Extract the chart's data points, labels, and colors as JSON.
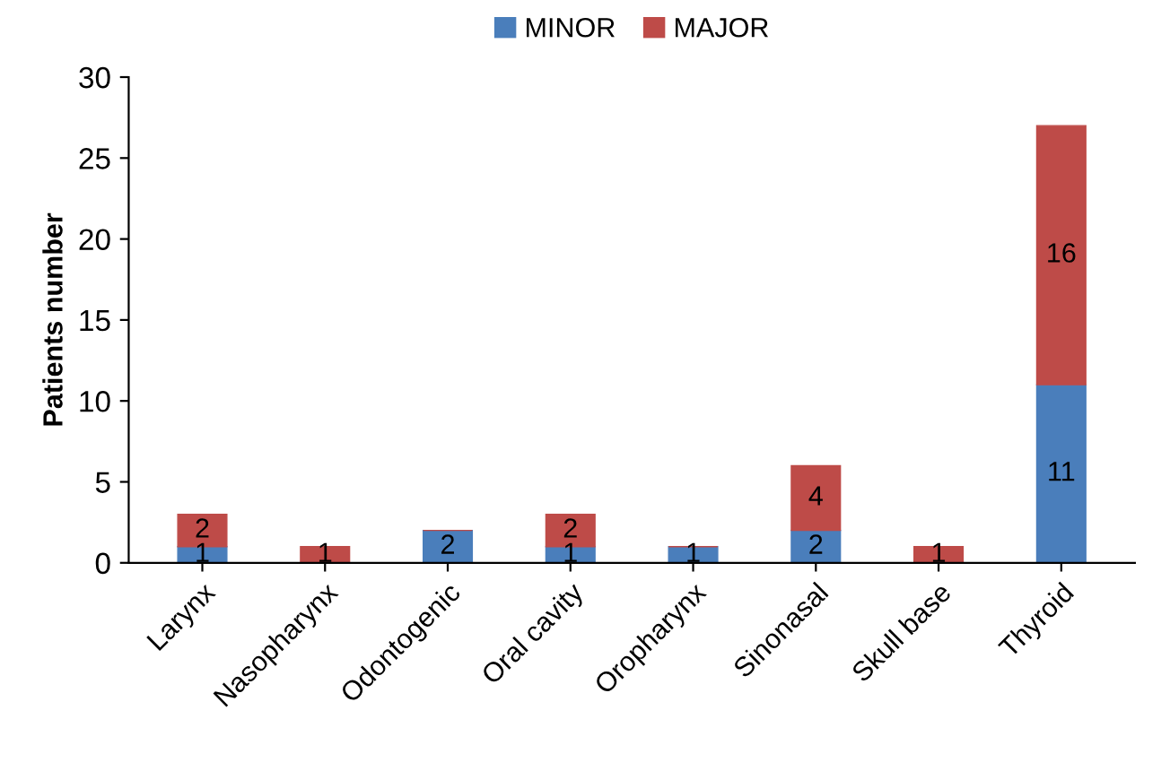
{
  "chart_data": {
    "type": "bar",
    "stacked": true,
    "ylabel": "Patients number",
    "categories": [
      "Larynx",
      "Nasopharynx",
      "Odontogenic",
      "Oral cavity",
      "Oropharynx",
      "Sinonasal",
      "Skull base",
      "Thyroid"
    ],
    "series": [
      {
        "name": "MINOR",
        "color": "#4a7ebb",
        "values": [
          1,
          0,
          2,
          1,
          1,
          2,
          0,
          11
        ],
        "value_labels": [
          "1",
          null,
          "2",
          "1",
          "1",
          "2",
          null,
          "11"
        ]
      },
      {
        "name": "MAJOR",
        "color": "#be4b48",
        "values": [
          2,
          1,
          0,
          2,
          0,
          4,
          1,
          16
        ],
        "value_labels": [
          "2",
          "1",
          null,
          "2",
          null,
          "4",
          "1",
          "16"
        ]
      }
    ],
    "ylim": [
      0,
      30
    ],
    "yticks": [
      0,
      5,
      10,
      15,
      20,
      25,
      30
    ],
    "grid": false,
    "legend": "top"
  }
}
